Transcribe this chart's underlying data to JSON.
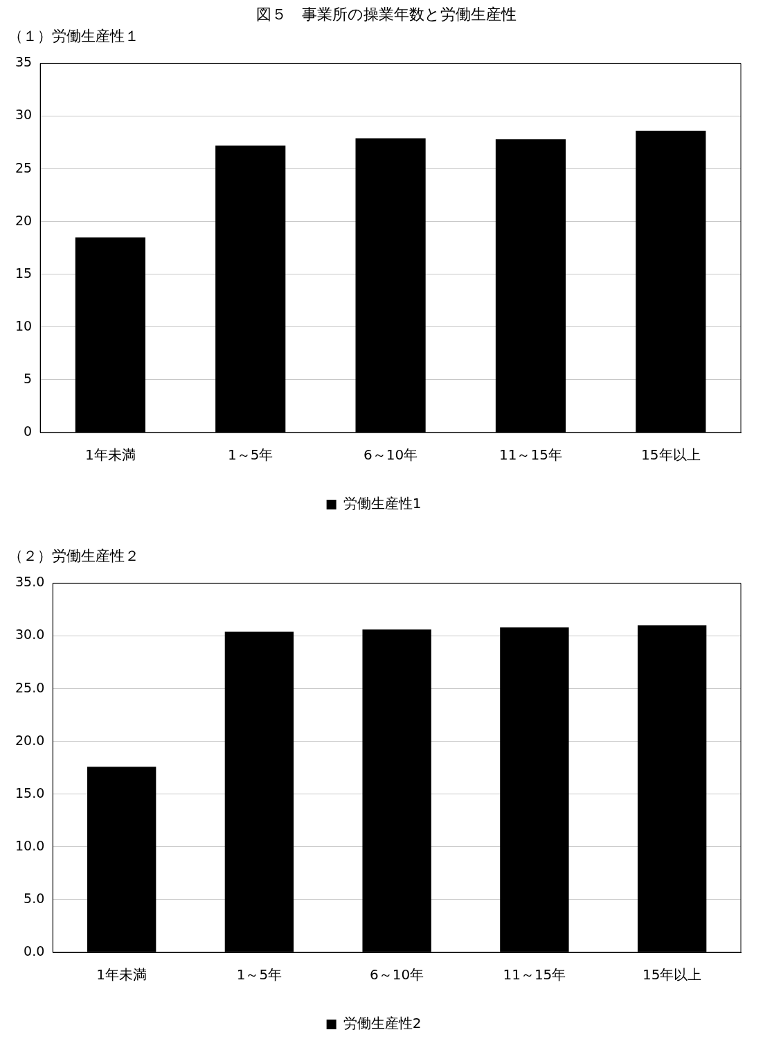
{
  "chart_data": [
    {
      "type": "bar",
      "title": "図５　事業所の操業年数と労働生産性",
      "subtitle": "（１）労働生産性１",
      "categories": [
        "1年未満",
        "1～5年",
        "6～10年",
        "11～15年",
        "15年以上"
      ],
      "series": [
        {
          "name": "労働生産性1",
          "color": "#000000",
          "values": [
            18.5,
            27.2,
            27.9,
            27.8,
            28.6
          ]
        }
      ],
      "ylim": [
        0,
        35
      ],
      "yticks": [
        0,
        5,
        10,
        15,
        20,
        25,
        30,
        35
      ],
      "grid": "y",
      "legend": "bottom"
    },
    {
      "type": "bar",
      "title": "（２）労働生産性２",
      "categories": [
        "1年未満",
        "1～5年",
        "6～10年",
        "11～15年",
        "15年以上"
      ],
      "series": [
        {
          "name": "労働生産性2",
          "color": "#000000",
          "values": [
            17.6,
            30.4,
            30.6,
            30.8,
            31.0
          ]
        }
      ],
      "ylim": [
        0,
        35
      ],
      "yticks": [
        {
          "value": 0,
          "label": "0.0"
        },
        {
          "value": 5,
          "label": "5.0"
        },
        {
          "value": 10,
          "label": "10.0"
        },
        {
          "value": 15,
          "label": "15.0"
        },
        {
          "value": 20,
          "label": "20.0"
        },
        {
          "value": 25,
          "label": "25.0"
        },
        {
          "value": 30,
          "label": "30.0"
        },
        {
          "value": 35,
          "label": "35.0"
        }
      ],
      "grid": "y",
      "legend": "bottom"
    }
  ]
}
